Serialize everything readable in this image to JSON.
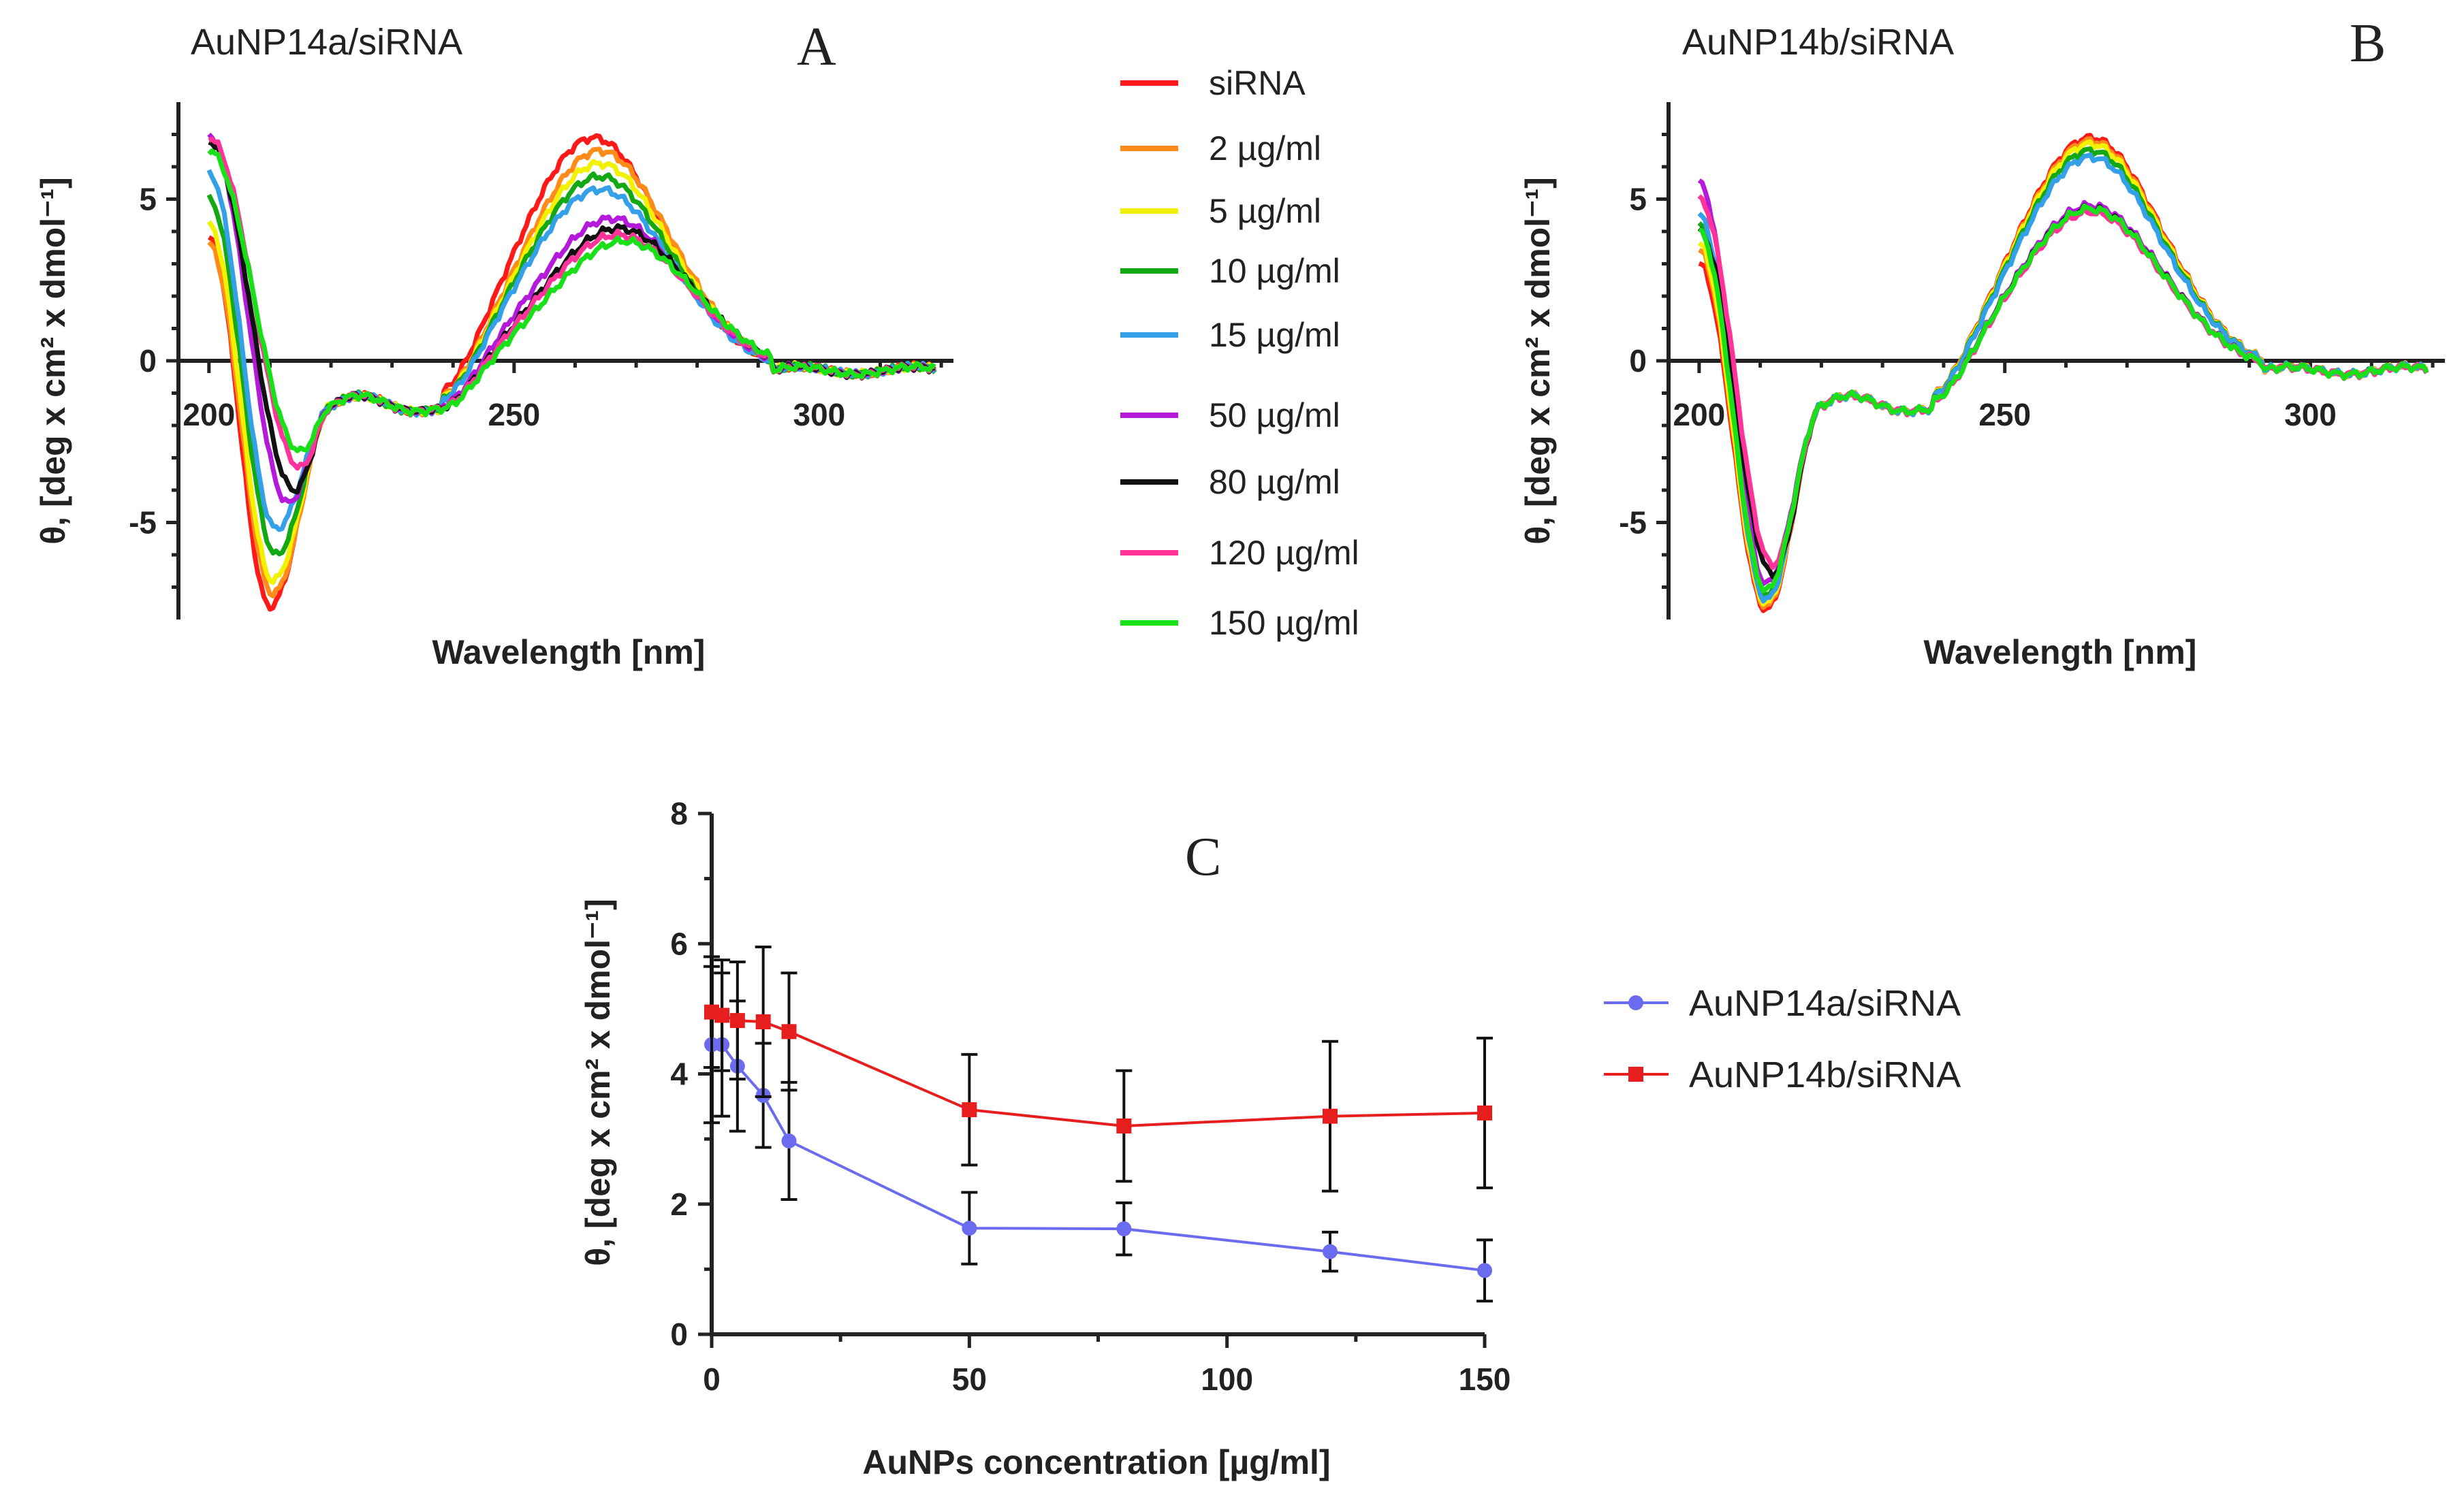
{
  "chart_data": [
    {
      "panel": "A",
      "type": "line",
      "title": "AuNP14a/siRNA",
      "xlabel": "Wavelength [nm]",
      "ylabel": "θ, [deg x cm² x dmol⁻¹]",
      "xlim": [
        195,
        322
      ],
      "ylim": [
        -8,
        8
      ],
      "xticks": [
        "200",
        "250",
        "300"
      ],
      "yticks": [
        "5",
        "0",
        "-5"
      ],
      "series": [
        {
          "name": "siRNA",
          "color": "#ff1a1a",
          "shape": {
            "y0": 3.8,
            "min": -7.6,
            "xmin": 210,
            "max": 6.9,
            "xmax": 263
          }
        },
        {
          "name": "2 µg/ml",
          "color": "#ff8c1a",
          "shape": {
            "y0": 3.6,
            "min": -7.2,
            "xmin": 210.5,
            "max": 6.5,
            "xmax": 264
          }
        },
        {
          "name": "5 µg/ml",
          "color": "#f2f200",
          "shape": {
            "y0": 4.2,
            "min": -6.8,
            "xmin": 210.5,
            "max": 6.1,
            "xmax": 264
          }
        },
        {
          "name": "10 µg/ml",
          "color": "#14a814",
          "shape": {
            "y0": 5.0,
            "min": -6.0,
            "xmin": 211,
            "max": 5.7,
            "xmax": 264
          }
        },
        {
          "name": "15 µg/ml",
          "color": "#33a0e8",
          "shape": {
            "y0": 5.8,
            "min": -5.2,
            "xmin": 211,
            "max": 5.3,
            "xmax": 264
          }
        },
        {
          "name": "50 µg/ml",
          "color": "#b51adb",
          "shape": {
            "y0": 7.0,
            "min": -4.4,
            "xmin": 213,
            "max": 4.4,
            "xmax": 266
          }
        },
        {
          "name": "80 µg/ml",
          "color": "#111111",
          "shape": {
            "y0": 6.8,
            "min": -4.0,
            "xmin": 214,
            "max": 4.1,
            "xmax": 267
          }
        },
        {
          "name": "120 µg/ml",
          "color": "#ff3399",
          "shape": {
            "y0": 6.9,
            "min": -3.3,
            "xmin": 215,
            "max": 3.9,
            "xmax": 267
          }
        },
        {
          "name": "150 µg/ml",
          "color": "#1ae01a",
          "shape": {
            "y0": 6.5,
            "min": -2.8,
            "xmin": 215,
            "max": 3.7,
            "xmax": 268
          }
        }
      ]
    },
    {
      "panel": "B",
      "type": "line",
      "title": "AuNP14b/siRNA",
      "xlabel": "Wavelength [nm]",
      "ylabel": "θ, [deg x cm² x dmol⁻¹]",
      "xlim": [
        195,
        322
      ],
      "ylim": [
        -8,
        8
      ],
      "xticks": [
        "200",
        "250",
        "300"
      ],
      "yticks": [
        "5",
        "0",
        "-5"
      ],
      "series": [
        {
          "name": "siRNA",
          "color": "#ff1a1a",
          "shape": {
            "y0": 3.0,
            "min": -7.7,
            "xmin": 211,
            "max": 6.9,
            "xmax": 264
          }
        },
        {
          "name": "2 µg/ml",
          "color": "#ff8c1a",
          "shape": {
            "y0": 3.4,
            "min": -7.6,
            "xmin": 211,
            "max": 6.8,
            "xmax": 264
          }
        },
        {
          "name": "5 µg/ml",
          "color": "#f2f200",
          "shape": {
            "y0": 3.6,
            "min": -7.5,
            "xmin": 211,
            "max": 6.7,
            "xmax": 264
          }
        },
        {
          "name": "10 µg/ml",
          "color": "#14a814",
          "shape": {
            "y0": 4.2,
            "min": -7.3,
            "xmin": 211,
            "max": 6.5,
            "xmax": 264
          }
        },
        {
          "name": "15 µg/ml",
          "color": "#33a0e8",
          "shape": {
            "y0": 4.5,
            "min": -7.4,
            "xmin": 211,
            "max": 6.3,
            "xmax": 264
          }
        },
        {
          "name": "50 µg/ml",
          "color": "#b51adb",
          "shape": {
            "y0": 5.5,
            "min": -6.9,
            "xmin": 211,
            "max": 4.8,
            "xmax": 264
          }
        },
        {
          "name": "80 µg/ml",
          "color": "#111111",
          "shape": {
            "y0": 4.0,
            "min": -6.6,
            "xmin": 212,
            "max": 4.7,
            "xmax": 264
          }
        },
        {
          "name": "120 µg/ml",
          "color": "#ff3399",
          "shape": {
            "y0": 5.0,
            "min": -6.3,
            "xmin": 212,
            "max": 4.6,
            "xmax": 264
          }
        },
        {
          "name": "150 µg/ml",
          "color": "#1ae01a",
          "shape": {
            "y0": 4.0,
            "min": -7.1,
            "xmin": 211,
            "max": 4.7,
            "xmax": 264
          }
        }
      ]
    },
    {
      "panel": "C",
      "type": "line",
      "xlabel": "AuNPs concentration [µg/ml]",
      "ylabel": "θ, [deg x cm² x dmol⁻¹]",
      "xlim": [
        0,
        150
      ],
      "ylim": [
        0,
        8
      ],
      "xticks": [
        "0",
        "50",
        "100",
        "150"
      ],
      "yticks": [
        "0",
        "2",
        "4",
        "6",
        "8"
      ],
      "x": [
        0,
        2,
        5,
        10,
        15,
        50,
        80,
        120,
        150
      ],
      "series": [
        {
          "name": "AuNP14a/siRNA",
          "color": "#6b6bf0",
          "marker": "circle",
          "values": [
            4.45,
            4.45,
            4.12,
            3.67,
            2.97,
            1.63,
            1.62,
            1.27,
            0.98
          ],
          "errors": [
            1.2,
            1.1,
            1.0,
            0.8,
            0.9,
            0.55,
            0.4,
            0.3,
            0.47
          ]
        },
        {
          "name": "AuNP14b/siRNA",
          "color": "#e61e1e",
          "marker": "square",
          "values": [
            4.95,
            4.9,
            4.82,
            4.8,
            4.65,
            3.45,
            3.2,
            3.35,
            3.4
          ],
          "errors": [
            0.85,
            0.85,
            0.9,
            1.15,
            0.9,
            0.85,
            0.85,
            1.15,
            1.15
          ]
        }
      ]
    }
  ],
  "panels": {
    "a": {
      "title": "AuNP14a/siRNA",
      "letter": "A",
      "xlabel": "Wavelength [nm]",
      "ylabel": "θ, [deg x cm² x dmol⁻¹]"
    },
    "b": {
      "title": "AuNP14b/siRNA",
      "letter": "B",
      "xlabel": "Wavelength [nm]",
      "ylabel": "θ, [deg x cm² x dmol⁻¹]"
    },
    "c": {
      "letter": "C",
      "xlabel": "AuNPs concentration [µg/ml]",
      "ylabel": "θ, [deg x cm² x dmol⁻¹]"
    }
  },
  "legend_ab": [
    {
      "label": "siRNA",
      "color": "#ff1a1a"
    },
    {
      "label": "2 µg/ml",
      "color": "#ff8c1a"
    },
    {
      "label": "5 µg/ml",
      "color": "#f2f200"
    },
    {
      "label": "10 µg/ml",
      "color": "#14a814"
    },
    {
      "label": "15 µg/ml",
      "color": "#33a0e8"
    },
    {
      "label": "50 µg/ml",
      "color": "#b51adb"
    },
    {
      "label": "80 µg/ml",
      "color": "#111111"
    },
    {
      "label": "120 µg/ml",
      "color": "#ff3399"
    },
    {
      "label": "150 µg/ml",
      "color": "#1ae01a"
    }
  ],
  "legend_c": [
    {
      "label": "AuNP14a/siRNA",
      "color": "#6b6bf0",
      "marker": "circle"
    },
    {
      "label": "AuNP14b/siRNA",
      "color": "#e61e1e",
      "marker": "square"
    }
  ]
}
